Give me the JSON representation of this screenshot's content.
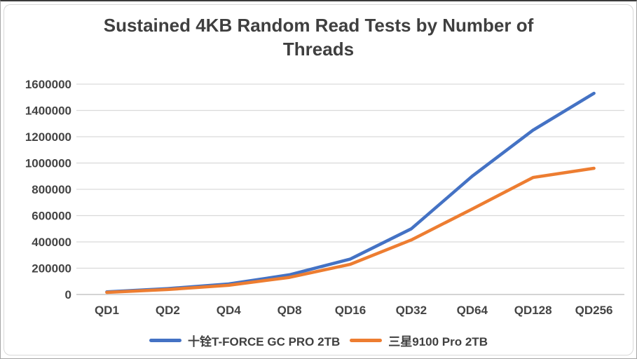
{
  "chart_data": {
    "type": "line",
    "title": "Sustained 4KB Random Read Tests by Number of Threads",
    "categories": [
      "QD1",
      "QD2",
      "QD4",
      "QD8",
      "QD16",
      "QD32",
      "QD64",
      "QD128",
      "QD256"
    ],
    "series": [
      {
        "name": "十铨T-FORCE GC PRO 2TB",
        "color": "#4472C4",
        "values": [
          20000,
          45000,
          80000,
          150000,
          270000,
          500000,
          900000,
          1250000,
          1530000
        ]
      },
      {
        "name": "三星9100 Pro 2TB",
        "color": "#ED7D31",
        "values": [
          16000,
          38000,
          70000,
          130000,
          230000,
          415000,
          650000,
          890000,
          960000
        ]
      }
    ],
    "xlabel": "",
    "ylabel": "",
    "ylim": [
      0,
      1600000
    ],
    "y_ticks": [
      0,
      200000,
      400000,
      600000,
      800000,
      1000000,
      1200000,
      1400000,
      1600000
    ],
    "grid": true,
    "legend_position": "bottom"
  },
  "styles": {
    "grid_color": "#d9d9d9",
    "axis_color": "#bfbfbf",
    "tick_text_color": "#444444",
    "title_color": "#3f3f3f"
  }
}
